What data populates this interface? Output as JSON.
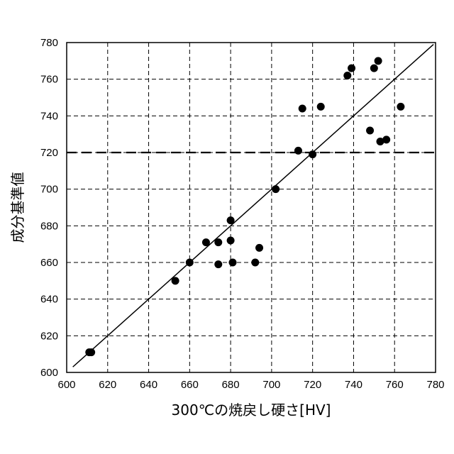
{
  "chart_data": {
    "type": "scatter",
    "xlabel": "300℃の焼戻し硬さ[HV]",
    "ylabel": "成分基準値",
    "xlim": [
      600,
      780
    ],
    "ylim": [
      600,
      780
    ],
    "xticks": [
      600,
      620,
      640,
      660,
      680,
      700,
      720,
      740,
      760,
      780
    ],
    "yticks": [
      600,
      620,
      640,
      660,
      680,
      700,
      720,
      740,
      760,
      780
    ],
    "grid": true,
    "grid_style": "dashed",
    "reference_line": {
      "type": "y=x",
      "from": 603,
      "to": 779
    },
    "threshold_line": {
      "y": 720,
      "style": "dashed-bold"
    },
    "points": [
      {
        "x": 611,
        "y": 611
      },
      {
        "x": 612,
        "y": 611
      },
      {
        "x": 653,
        "y": 650
      },
      {
        "x": 660,
        "y": 660
      },
      {
        "x": 668,
        "y": 671
      },
      {
        "x": 674,
        "y": 671
      },
      {
        "x": 674,
        "y": 659
      },
      {
        "x": 680,
        "y": 683
      },
      {
        "x": 680,
        "y": 672
      },
      {
        "x": 681,
        "y": 660
      },
      {
        "x": 692,
        "y": 660
      },
      {
        "x": 694,
        "y": 668
      },
      {
        "x": 702,
        "y": 700
      },
      {
        "x": 713,
        "y": 721
      },
      {
        "x": 715,
        "y": 744
      },
      {
        "x": 720,
        "y": 719
      },
      {
        "x": 724,
        "y": 745
      },
      {
        "x": 737,
        "y": 762
      },
      {
        "x": 739,
        "y": 766
      },
      {
        "x": 748,
        "y": 732
      },
      {
        "x": 750,
        "y": 766
      },
      {
        "x": 752,
        "y": 770
      },
      {
        "x": 753,
        "y": 726
      },
      {
        "x": 756,
        "y": 727
      },
      {
        "x": 763,
        "y": 745
      }
    ]
  }
}
